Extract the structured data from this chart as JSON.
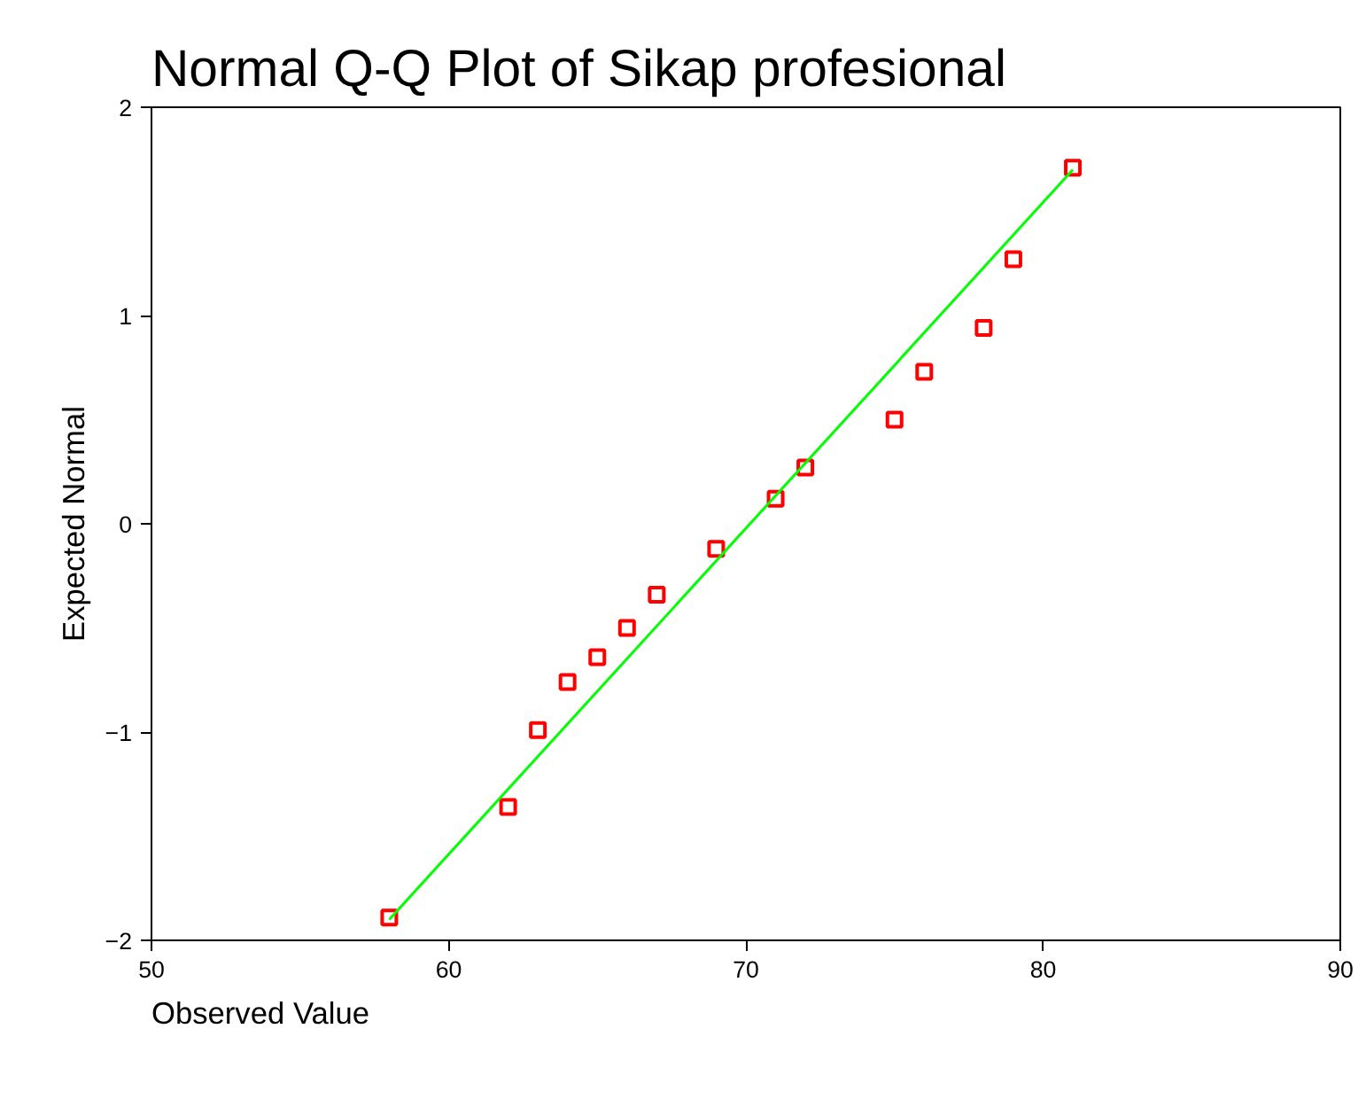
{
  "chart_data": {
    "type": "scatter",
    "title": "Normal Q-Q Plot of Sikap profesional",
    "xlabel": "Observed Value",
    "ylabel": "Expected Normal",
    "xlim": [
      50,
      90
    ],
    "xticks": [
      50,
      60,
      70,
      80,
      90
    ],
    "ylim": [
      -2,
      2
    ],
    "yticks": [
      -2,
      -1,
      0,
      1,
      2
    ],
    "grid": false,
    "series": [
      {
        "marker": "square",
        "color": "#ff0000",
        "x": [
          58,
          62,
          63,
          64,
          65,
          66,
          67,
          69,
          71,
          72,
          75,
          76,
          78,
          79,
          81
        ],
        "values": [
          -1.89,
          -1.36,
          -0.99,
          -0.76,
          -0.64,
          -0.5,
          -0.34,
          -0.12,
          0.12,
          0.27,
          0.5,
          0.73,
          0.94,
          1.27,
          1.71
        ]
      },
      {
        "type": "line",
        "marker": "none",
        "color": "#00ff00",
        "x": [
          58,
          81
        ],
        "values": [
          -1.9,
          1.7
        ]
      }
    ]
  }
}
